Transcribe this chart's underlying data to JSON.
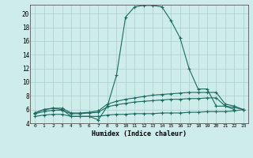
{
  "xlabel": "Humidex (Indice chaleur)",
  "x": [
    0,
    1,
    2,
    3,
    4,
    5,
    6,
    7,
    8,
    9,
    10,
    11,
    12,
    13,
    14,
    15,
    16,
    17,
    18,
    19,
    20,
    21,
    22,
    23
  ],
  "line1": [
    5.5,
    6.0,
    null,
    null,
    null,
    null,
    null,
    null,
    null,
    null,
    null,
    null,
    null,
    null,
    null,
    null,
    null,
    null,
    null,
    null,
    null,
    null,
    null,
    null
  ],
  "line1_segments": [
    {
      "x": [
        0,
        1
      ],
      "y": [
        5.5,
        6.0
      ]
    },
    {
      "x": [
        2,
        3,
        4,
        5,
        6,
        7,
        8,
        9,
        10,
        11,
        12,
        13,
        14,
        15,
        16,
        17,
        18,
        19,
        20,
        21,
        22
      ],
      "y": [
        6.2,
        6.0,
        5.0,
        5.0,
        5.0,
        4.5,
        6.5,
        11.0,
        19.5,
        21.0,
        21.2,
        21.2,
        21.0,
        19.0,
        16.5,
        12.0,
        9.0,
        9.0,
        6.5,
        6.5,
        6.0
      ]
    }
  ],
  "line1_x": [
    0,
    1,
    2,
    3,
    4,
    5,
    6,
    7,
    8,
    9,
    10,
    11,
    12,
    13,
    14,
    15,
    16,
    17,
    18,
    19,
    20,
    21,
    22
  ],
  "line1_y": [
    5.5,
    6.0,
    6.2,
    6.0,
    5.0,
    5.0,
    5.0,
    4.5,
    6.5,
    11.0,
    19.5,
    21.0,
    21.2,
    21.2,
    21.0,
    19.0,
    16.5,
    12.0,
    9.0,
    9.0,
    6.5,
    6.5,
    6.0
  ],
  "line2_x": [
    0,
    1,
    2,
    3,
    4,
    5,
    6,
    7,
    8,
    9,
    10,
    11,
    12,
    13,
    14,
    15,
    16,
    17,
    18,
    19,
    20,
    21,
    22,
    23
  ],
  "line2_y": [
    5.5,
    6.0,
    6.2,
    6.2,
    5.5,
    5.5,
    5.6,
    5.8,
    6.8,
    7.2,
    7.5,
    7.7,
    7.9,
    8.1,
    8.2,
    8.3,
    8.4,
    8.5,
    8.5,
    8.5,
    8.5,
    6.8,
    6.5,
    6.0
  ],
  "line3_x": [
    0,
    1,
    2,
    3,
    4,
    5,
    6,
    7,
    8,
    9,
    10,
    11,
    12,
    13,
    14,
    15,
    16,
    17,
    18,
    19,
    20,
    21,
    22,
    23
  ],
  "line3_y": [
    5.4,
    5.7,
    5.9,
    5.9,
    5.4,
    5.4,
    5.5,
    5.6,
    6.4,
    6.7,
    6.9,
    7.1,
    7.2,
    7.3,
    7.4,
    7.5,
    7.5,
    7.6,
    7.6,
    7.7,
    7.7,
    6.5,
    6.3,
    6.0
  ],
  "line4_x": [
    0,
    1,
    2,
    3,
    4,
    5,
    6,
    7,
    8,
    9,
    10,
    11,
    12,
    13,
    14,
    15,
    16,
    17,
    18,
    19,
    20,
    21,
    22,
    23
  ],
  "line4_y": [
    5.0,
    5.2,
    5.3,
    5.3,
    5.0,
    5.0,
    5.0,
    5.0,
    5.2,
    5.3,
    5.3,
    5.4,
    5.4,
    5.4,
    5.5,
    5.5,
    5.5,
    5.6,
    5.6,
    5.7,
    5.7,
    5.7,
    5.8,
    6.0
  ],
  "bg_color": "#ceecea",
  "grid_color": "#aacfcc",
  "line_color": "#1a6b60",
  "ylim": [
    4,
    21
  ],
  "xlim": [
    -0.5,
    23.5
  ],
  "yticks": [
    4,
    6,
    8,
    10,
    12,
    14,
    16,
    18,
    20
  ],
  "xticks": [
    0,
    1,
    2,
    3,
    4,
    5,
    6,
    7,
    8,
    9,
    10,
    11,
    12,
    13,
    14,
    15,
    16,
    17,
    18,
    19,
    20,
    21,
    22,
    23
  ]
}
